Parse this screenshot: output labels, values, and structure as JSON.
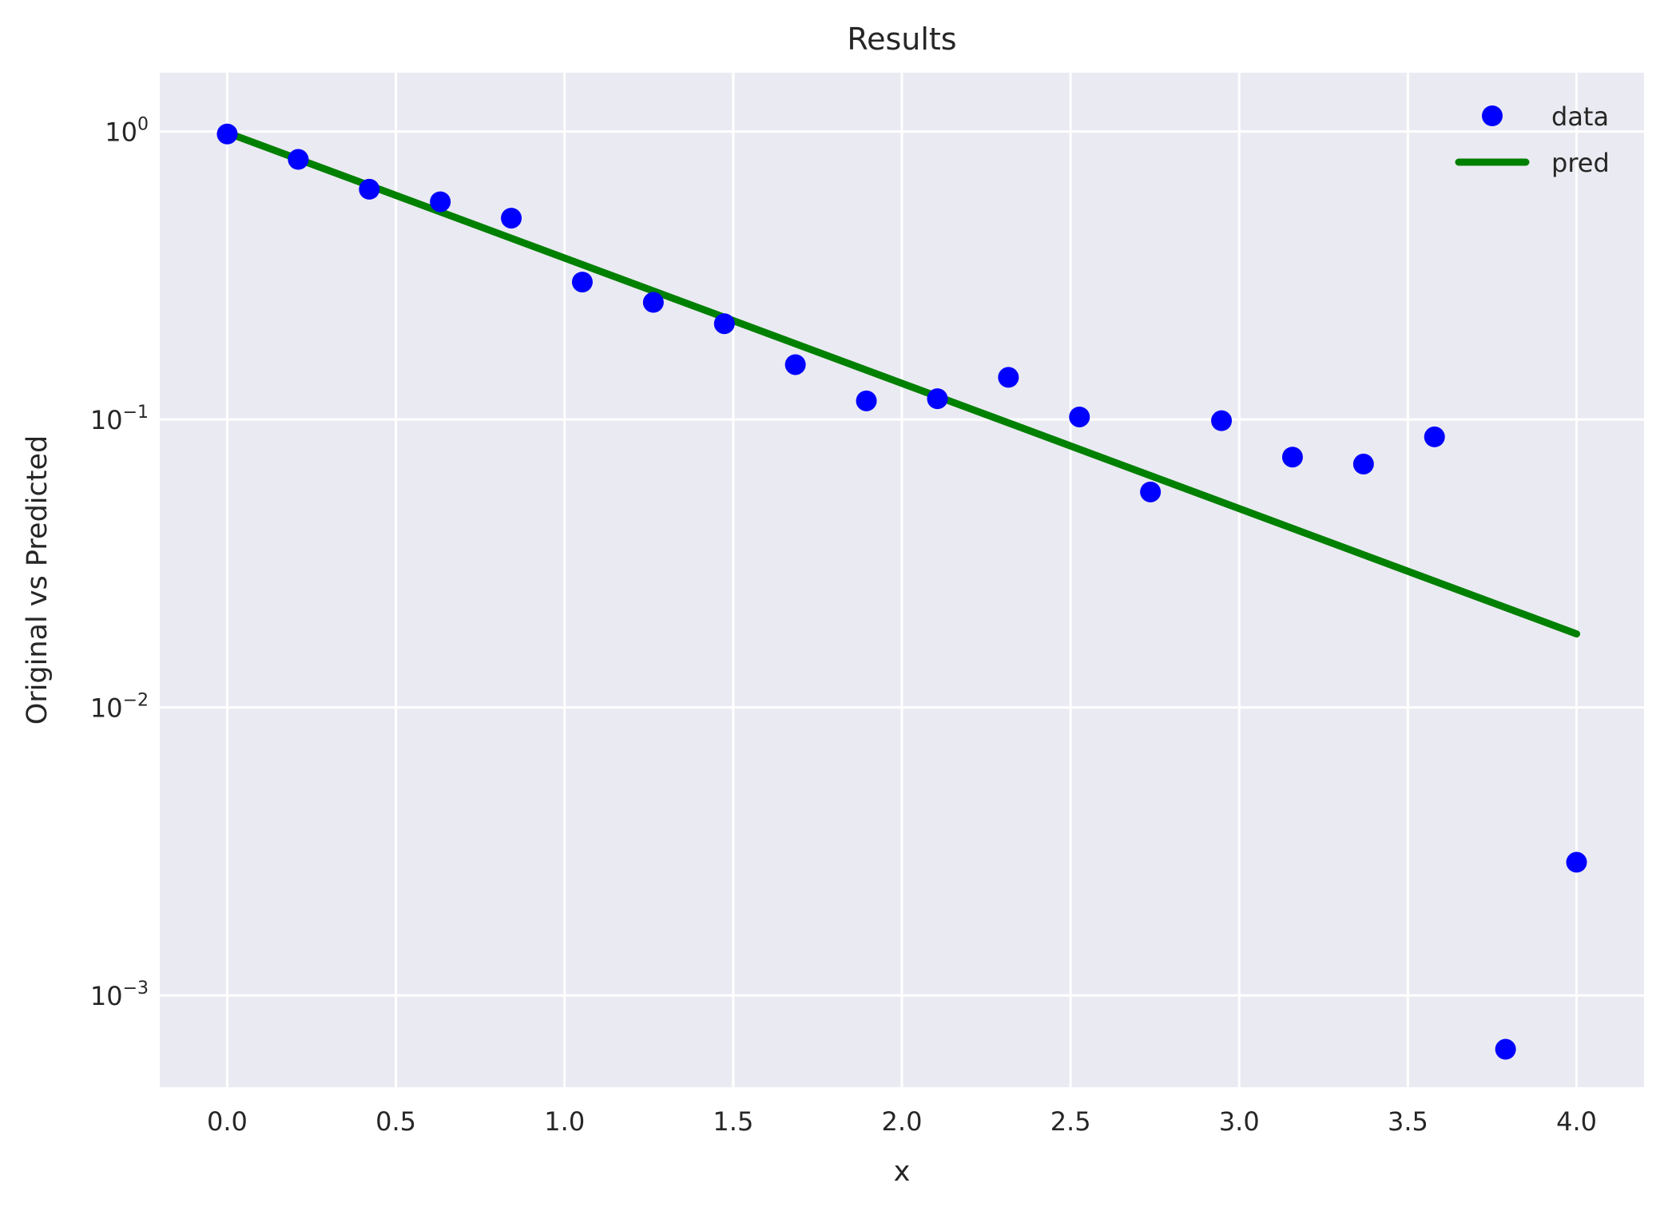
{
  "chart_data": {
    "type": "scatter",
    "title": "Results",
    "xlabel": "x",
    "ylabel": "Original vs Predicted",
    "xlim": [
      -0.2,
      4.2
    ],
    "ylim": [
      0.00048,
      1.6
    ],
    "yscale": "log",
    "grid": true,
    "legend_position": "top-right",
    "x_ticks": [
      0.0,
      0.5,
      1.0,
      1.5,
      2.0,
      2.5,
      3.0,
      3.5,
      4.0
    ],
    "x_tick_labels": [
      "0.0",
      "0.5",
      "1.0",
      "1.5",
      "2.0",
      "2.5",
      "3.0",
      "3.5",
      "4.0"
    ],
    "y_ticks": [
      {
        "value": 1,
        "base": "10",
        "exp": "0"
      },
      {
        "value": 0.1,
        "base": "10",
        "exp": "−1"
      },
      {
        "value": 0.01,
        "base": "10",
        "exp": "−2"
      },
      {
        "value": 0.001,
        "base": "10",
        "exp": "−3"
      }
    ],
    "series": [
      {
        "name": "data",
        "kind": "scatter",
        "color": "#0000ff",
        "x": [
          0.0,
          0.2105,
          0.4211,
          0.6316,
          0.8421,
          1.0526,
          1.2632,
          1.4737,
          1.6842,
          1.8947,
          2.1053,
          2.3158,
          2.5263,
          2.7368,
          2.9474,
          3.1579,
          3.3684,
          3.5789,
          3.7895,
          4.0
        ],
        "y": [
          0.98,
          0.8,
          0.63,
          0.57,
          0.5,
          0.3,
          0.255,
          0.215,
          0.155,
          0.116,
          0.118,
          0.14,
          0.102,
          0.056,
          0.099,
          0.074,
          0.07,
          0.087,
          0.00065,
          0.0029
        ]
      },
      {
        "name": "pred",
        "kind": "line",
        "color": "#008000",
        "x": [
          0.0,
          4.0
        ],
        "y": [
          0.99,
          0.018
        ]
      }
    ]
  }
}
